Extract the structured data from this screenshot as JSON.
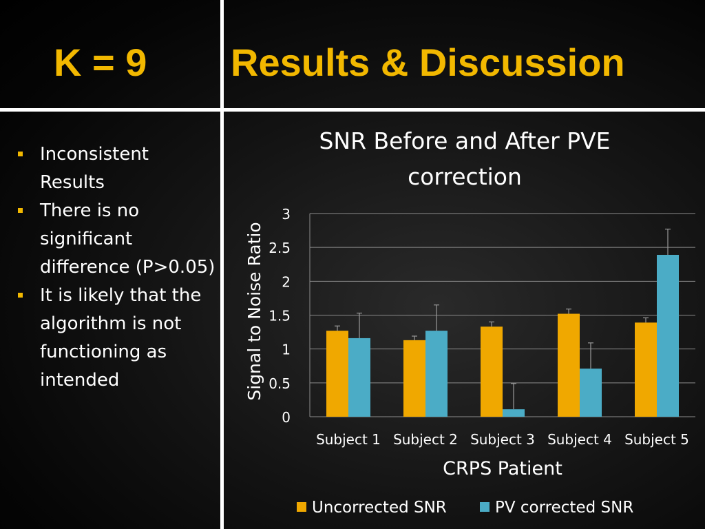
{
  "slide": {
    "k_label": "K = 9",
    "title": "Results & Discussion",
    "bullets": [
      "Inconsistent Results",
      "There is no significant difference (P>0.05)",
      "It is likely that the algorithm is not functioning as intended"
    ],
    "colors": {
      "title": "#f2b800",
      "bullet_marker": "#f2b800",
      "divider": "#ffffff"
    }
  },
  "chart_data": {
    "type": "bar",
    "title": "SNR Before and After PVE correction",
    "xlabel": "CRPS Patient",
    "ylabel": "Signal to Noise Ratio",
    "categories": [
      "Subject 1",
      "Subject 2",
      "Subject 3",
      "Subject 4",
      "Subject 5"
    ],
    "ylim": [
      0,
      3
    ],
    "yticks": [
      "0",
      "0.5",
      "1",
      "1.5",
      "2",
      "2.5",
      "3"
    ],
    "grid": true,
    "legend": "bottom",
    "error_bars": true,
    "series": [
      {
        "name": "Uncorrected SNR",
        "color": "#f0a800",
        "values": [
          1.27,
          1.13,
          1.33,
          1.52,
          1.39
        ],
        "errors": [
          0.07,
          0.06,
          0.07,
          0.07,
          0.07
        ]
      },
      {
        "name": "PV corrected SNR",
        "color": "#4bacc6",
        "values": [
          1.16,
          1.27,
          0.11,
          0.71,
          2.39
        ],
        "errors": [
          0.37,
          0.38,
          0.38,
          0.38,
          0.38
        ]
      }
    ]
  }
}
